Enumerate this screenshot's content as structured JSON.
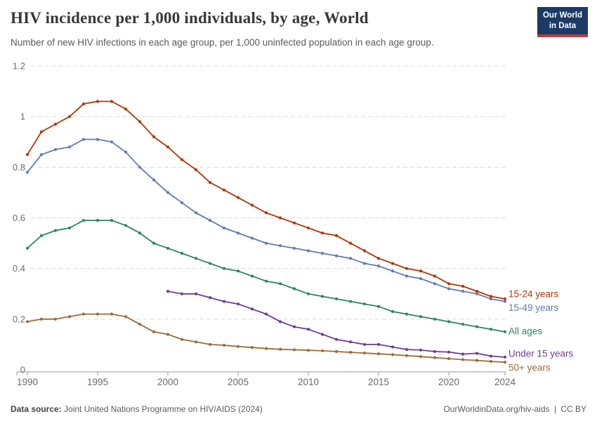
{
  "chart_data": {
    "type": "line",
    "title": "HIV incidence per 1,000 individuals, by age, World",
    "subtitle": "Number of new HIV infections in each age group, per 1,000 uninfected population in each age group.",
    "xlabel": "",
    "ylabel": "",
    "ylim": [
      0,
      1.2
    ],
    "x_range": [
      1990,
      2024
    ],
    "grid": "horizontal-dashed",
    "legend_position": "right-of-line-ends",
    "y_ticks": [
      {
        "v": 0,
        "label": "0"
      },
      {
        "v": 0.2,
        "label": "0.2"
      },
      {
        "v": 0.4,
        "label": "0.4"
      },
      {
        "v": 0.6,
        "label": "0.6"
      },
      {
        "v": 0.8,
        "label": "0.8"
      },
      {
        "v": 1,
        "label": "1"
      },
      {
        "v": 1.2,
        "label": "1.2"
      }
    ],
    "x_ticks": [
      1990,
      1995,
      2000,
      2005,
      2010,
      2015,
      2020,
      2024
    ],
    "series": [
      {
        "name": "15-24 years",
        "color": "#b13507",
        "start_year": 1990,
        "values": [
          0.85,
          0.94,
          0.97,
          1,
          1.05,
          1.06,
          1.06,
          1.03,
          0.98,
          0.92,
          0.88,
          0.83,
          0.79,
          0.74,
          0.71,
          0.68,
          0.65,
          0.62,
          0.6,
          0.58,
          0.56,
          0.54,
          0.53,
          0.5,
          0.47,
          0.44,
          0.42,
          0.4,
          0.39,
          0.37,
          0.34,
          0.33,
          0.31,
          0.29,
          0.28
        ]
      },
      {
        "name": "15-49 years",
        "color": "#5e7caf",
        "start_year": 1990,
        "values": [
          0.78,
          0.85,
          0.87,
          0.88,
          0.91,
          0.91,
          0.9,
          0.86,
          0.8,
          0.75,
          0.7,
          0.66,
          0.62,
          0.59,
          0.56,
          0.54,
          0.52,
          0.5,
          0.49,
          0.48,
          0.47,
          0.46,
          0.45,
          0.44,
          0.42,
          0.41,
          0.39,
          0.37,
          0.36,
          0.34,
          0.32,
          0.31,
          0.3,
          0.28,
          0.27
        ]
      },
      {
        "name": "All ages",
        "color": "#2c8465",
        "start_year": 1990,
        "values": [
          0.48,
          0.53,
          0.55,
          0.56,
          0.59,
          0.59,
          0.59,
          0.57,
          0.54,
          0.5,
          0.48,
          0.46,
          0.44,
          0.42,
          0.4,
          0.39,
          0.37,
          0.35,
          0.34,
          0.32,
          0.3,
          0.29,
          0.28,
          0.27,
          0.26,
          0.25,
          0.23,
          0.22,
          0.21,
          0.2,
          0.19,
          0.18,
          0.17,
          0.16,
          0.15
        ]
      },
      {
        "name": "Under 15 years",
        "color": "#6d3e91",
        "start_year": 2000,
        "values": [
          0.31,
          0.3,
          0.3,
          0.285,
          0.27,
          0.26,
          0.24,
          0.22,
          0.19,
          0.17,
          0.16,
          0.14,
          0.12,
          0.11,
          0.1,
          0.1,
          0.09,
          0.08,
          0.078,
          0.072,
          0.07,
          0.062,
          0.065,
          0.054,
          0.05
        ]
      },
      {
        "name": "50+ years",
        "color": "#996d39",
        "start_year": 1990,
        "values": [
          0.19,
          0.2,
          0.2,
          0.21,
          0.22,
          0.22,
          0.22,
          0.21,
          0.18,
          0.15,
          0.14,
          0.12,
          0.11,
          0.1,
          0.097,
          0.092,
          0.088,
          0.084,
          0.081,
          0.079,
          0.077,
          0.075,
          0.072,
          0.069,
          0.066,
          0.063,
          0.06,
          0.056,
          0.052,
          0.048,
          0.044,
          0.04,
          0.037,
          0.033,
          0.03
        ]
      }
    ]
  },
  "logo": {
    "line1": "Our World",
    "line2": "in Data",
    "bg_color": "#1b3b66",
    "stripe_color": "#b5403c"
  },
  "footer": {
    "source_label": "Data source:",
    "source_text": "Joint United Nations Programme on HIV/AIDS (2024)",
    "link_text": "OurWorldinData.org/hiv-aids",
    "separator": "|",
    "license": "CC BY"
  },
  "style": {
    "grid_color": "#dcdcdc",
    "axis_color": "#999999",
    "tick_text_color": "#6b6b6b"
  }
}
